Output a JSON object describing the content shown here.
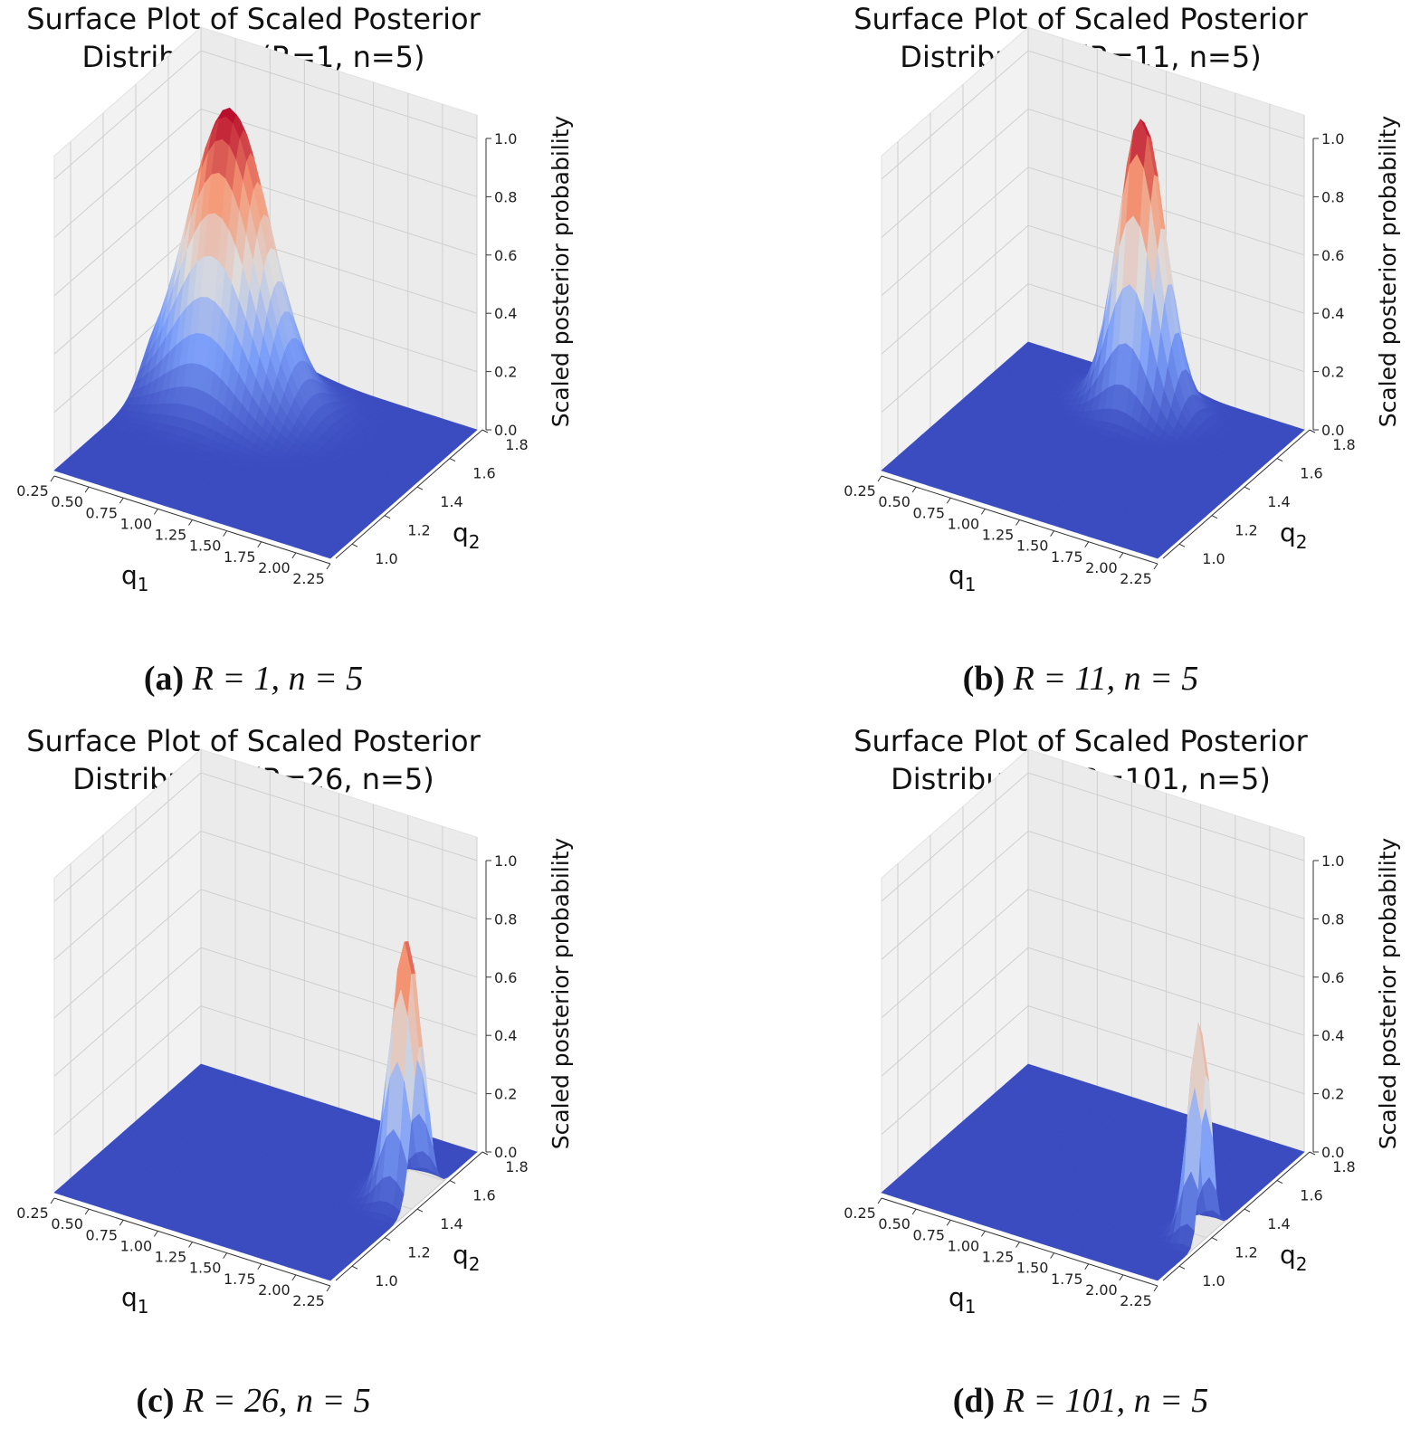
{
  "chart_data": [
    {
      "type": "surface",
      "panel_label": "(a)",
      "caption_math": "R = 1, n = 5",
      "title": "Surface Plot of Scaled Posterior Distribution (R=1, n=5)",
      "title_lines": [
        "Surface Plot of Scaled Posterior",
        "Distribution (R=1, n=5)"
      ],
      "xlabel": "q",
      "xlabel_sub": "1",
      "ylabel": "q",
      "ylabel_sub": "2",
      "zlabel": "Scaled posterior probability",
      "xlim": [
        0.25,
        2.25
      ],
      "ylim": [
        0.9,
        1.8
      ],
      "zlim": [
        0,
        1
      ],
      "x_ticks": [
        "0.25",
        "0.50",
        "0.75",
        "1.00",
        "1.25",
        "1.50",
        "1.75",
        "2.00",
        "2.25"
      ],
      "y_ticks": [
        "1.0",
        "1.2",
        "1.4",
        "1.6",
        "1.8"
      ],
      "z_ticks": [
        "0.0",
        "0.2",
        "0.4",
        "0.6",
        "0.8",
        "1.0"
      ],
      "colormap": "coolwarm",
      "peak": {
        "q1": 0.75,
        "q2": 1.55,
        "z": 1.0
      },
      "spread": {
        "q1": 0.28,
        "q2": 0.1
      }
    },
    {
      "type": "surface",
      "panel_label": "(b)",
      "caption_math": "R = 11, n = 5",
      "title": "Surface Plot of Scaled Posterior Distribution (R=11, n=5)",
      "title_lines": [
        "Surface Plot of Scaled Posterior",
        "Distribution (R=11, n=5)"
      ],
      "xlabel": "q",
      "xlabel_sub": "1",
      "ylabel": "q",
      "ylabel_sub": "2",
      "zlabel": "Scaled posterior probability",
      "xlim": [
        0.25,
        2.25
      ],
      "ylim": [
        0.9,
        1.8
      ],
      "zlim": [
        0,
        1
      ],
      "x_ticks": [
        "0.25",
        "0.50",
        "0.75",
        "1.00",
        "1.25",
        "1.50",
        "1.75",
        "2.00",
        "2.25"
      ],
      "y_ticks": [
        "1.0",
        "1.2",
        "1.4",
        "1.6",
        "1.8"
      ],
      "z_ticks": [
        "0.0",
        "0.2",
        "0.4",
        "0.6",
        "0.8",
        "1.0"
      ],
      "colormap": "coolwarm",
      "peak": {
        "q1": 1.25,
        "q2": 1.65,
        "z": 1.0
      },
      "spread": {
        "q1": 0.16,
        "q2": 0.06
      }
    },
    {
      "type": "surface",
      "panel_label": "(c)",
      "caption_math": "R = 26, n = 5",
      "title": "Surface Plot of Scaled Posterior Distribution (R=26, n=5)",
      "title_lines": [
        "Surface Plot of Scaled Posterior",
        "Distribution (R=26, n=5)"
      ],
      "xlabel": "q",
      "xlabel_sub": "1",
      "ylabel": "q",
      "ylabel_sub": "2",
      "zlabel": "Scaled posterior probability",
      "xlim": [
        0.25,
        2.25
      ],
      "ylim": [
        0.9,
        1.8
      ],
      "zlim": [
        0,
        1
      ],
      "x_ticks": [
        "0.25",
        "0.50",
        "0.75",
        "1.00",
        "1.25",
        "1.50",
        "1.75",
        "2.00",
        "2.25"
      ],
      "y_ticks": [
        "1.0",
        "1.2",
        "1.4",
        "1.6",
        "1.8"
      ],
      "z_ticks": [
        "0.0",
        "0.2",
        "0.4",
        "0.6",
        "0.8",
        "1.0"
      ],
      "colormap": "coolwarm",
      "peak": {
        "q1": 2.15,
        "q2": 1.45,
        "z": 0.9
      },
      "spread": {
        "q1": 0.1,
        "q2": 0.05
      }
    },
    {
      "type": "surface",
      "panel_label": "(d)",
      "caption_math": "R = 101, n = 5",
      "title": "Surface Plot of Scaled Posterior Distribution (R=101, n=5)",
      "title_lines": [
        "Surface Plot of Scaled Posterior",
        "Distribution (R=101, n=5)"
      ],
      "xlabel": "q",
      "xlabel_sub": "1",
      "ylabel": "q",
      "ylabel_sub": "2",
      "zlabel": "Scaled posterior probability",
      "xlim": [
        0.25,
        2.25
      ],
      "ylim": [
        0.9,
        1.8
      ],
      "zlim": [
        0,
        1
      ],
      "x_ticks": [
        "0.25",
        "0.50",
        "0.75",
        "1.00",
        "1.25",
        "1.50",
        "1.75",
        "2.00",
        "2.25"
      ],
      "y_ticks": [
        "1.0",
        "1.2",
        "1.4",
        "1.6",
        "1.8"
      ],
      "z_ticks": [
        "0.0",
        "0.2",
        "0.4",
        "0.6",
        "0.8",
        "1.0"
      ],
      "colormap": "coolwarm",
      "peak": {
        "q1": 2.2,
        "q2": 1.2,
        "z": 0.75
      },
      "spread": {
        "q1": 0.07,
        "q2": 0.035
      }
    }
  ]
}
